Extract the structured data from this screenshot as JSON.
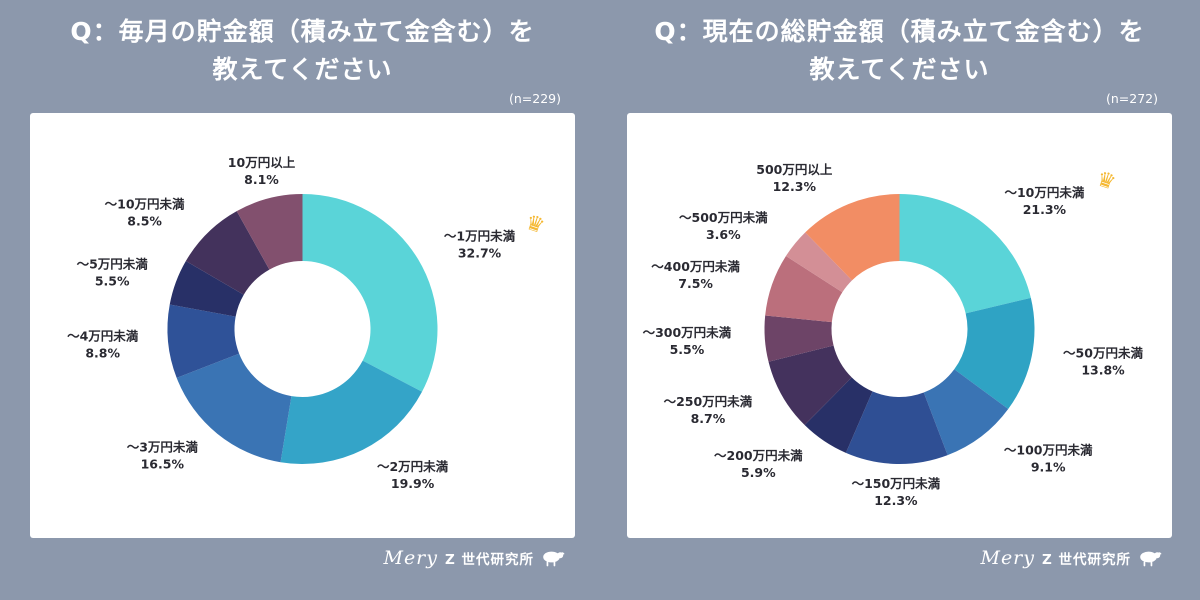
{
  "page": {
    "background": "#8c98ac"
  },
  "charts": [
    {
      "title_line1": "Q：毎月の貯金額（積み立て金含む）を",
      "title_line2": "教えてください",
      "n_label": "(n=229)"
    },
    {
      "title_line1": "Q：現在の総貯金額（積み立て金含む）を",
      "title_line2": "教えてください",
      "n_label": "(n=272)"
    }
  ],
  "footer": {
    "brand": "Mery",
    "lab": "Z 世代研究所",
    "icon": "sheep-icon"
  },
  "colors": {
    "crown": "#f5b832",
    "label_text": "#2a2a32",
    "card": "#ffffff",
    "title_text": "#ffffff"
  },
  "chart_data": [
    {
      "type": "pie",
      "subtype": "donut",
      "title": "Q：毎月の貯金額（積み立て金含む）を教えてください",
      "n": 229,
      "start_angle_deg": 0,
      "direction": "clockwise",
      "labels_position": "outside",
      "legend_position": "none",
      "categories": [
        "～1万円未満",
        "～2万円未満",
        "～3万円未満",
        "～4万円未満",
        "～5万円未満",
        "～10万円未満",
        "10万円以上"
      ],
      "values": [
        32.7,
        19.9,
        16.5,
        8.8,
        5.5,
        8.5,
        8.1
      ],
      "colors": [
        "#5ad4d8",
        "#34a4c8",
        "#3a74b4",
        "#2f5298",
        "#283067",
        "#43325c",
        "#82506e"
      ],
      "crown_index": 0
    },
    {
      "type": "pie",
      "subtype": "donut",
      "title": "Q：現在の総貯金額（積み立て金含む）を教えてください",
      "n": 272,
      "start_angle_deg": 0,
      "direction": "clockwise",
      "labels_position": "outside",
      "legend_position": "none",
      "categories": [
        "～10万円未満",
        "～50万円未満",
        "～100万円未満",
        "～150万円未満",
        "～200万円未満",
        "～250万円未満",
        "～300万円未満",
        "～400万円未満",
        "～500万円未満",
        "500万円以上"
      ],
      "values": [
        21.3,
        13.8,
        9.1,
        12.3,
        5.9,
        8.7,
        5.5,
        7.5,
        3.6,
        12.3
      ],
      "colors": [
        "#5ad4d8",
        "#2fa3c4",
        "#3a74b4",
        "#2f4f94",
        "#283067",
        "#44325d",
        "#6d4467",
        "#bb6f7c",
        "#d38f96",
        "#f28d64"
      ],
      "crown_index": 0
    }
  ]
}
